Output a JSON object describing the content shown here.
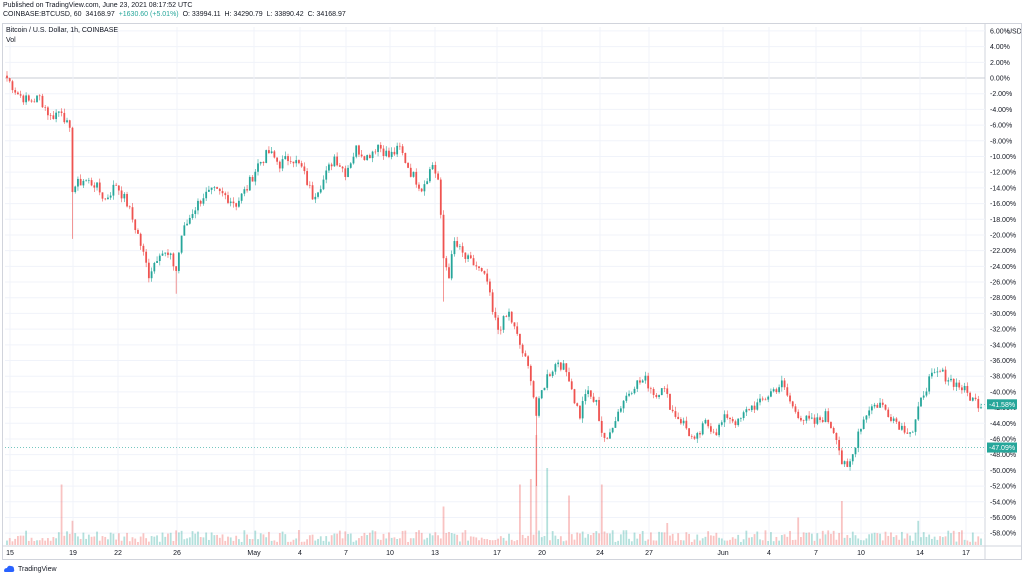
{
  "header": {
    "published": "Published on TradingView.com, June 23, 2021 08:17:52 UTC",
    "symbol": "COINBASE:BTCUSD, 60",
    "last": "34168.97",
    "change": "+1630.60 (+5.01%)",
    "open": "O: 33994.11",
    "high": "H: 34290.79",
    "low": "L: 33890.42",
    "close": "C: 34168.97"
  },
  "legend": {
    "title": "Bitcoin / U.S. Dollar, 1h, COINBASE",
    "vol_label": "Vol"
  },
  "footer": {
    "brand": "TradingView"
  },
  "colors": {
    "up": "#26a69a",
    "down": "#ef5350",
    "grid": "#f0f3fa",
    "axis": "#131722"
  },
  "chart_data": {
    "type": "candlestick",
    "yunit": "USD",
    "y_scale": "percent",
    "ylim": [
      -59,
      6.5
    ],
    "y_ticks": [
      "6.00%",
      "4.00%",
      "2.00%",
      "0.00%",
      "-2.00%",
      "-4.00%",
      "-6.00%",
      "-8.00%",
      "-10.00%",
      "-12.00%",
      "-14.00%",
      "-16.00%",
      "-18.00%",
      "-20.00%",
      "-22.00%",
      "-24.00%",
      "-26.00%",
      "-28.00%",
      "-30.00%",
      "-32.00%",
      "-34.00%",
      "-36.00%",
      "-38.00%",
      "-40.00%",
      "-42.00%",
      "-44.00%",
      "-46.00%",
      "-48.00%",
      "-50.00%",
      "-52.00%",
      "-54.00%",
      "-56.00%",
      "-58.00%"
    ],
    "x_ticks": [
      "15",
      "19",
      "22",
      "26",
      "May",
      "4",
      "7",
      "10",
      "13",
      "17",
      "20",
      "24",
      "27",
      "Jun",
      "4",
      "7",
      "10",
      "14",
      "17"
    ],
    "current_tag": "-41.58%",
    "reference_tag": "-47.09%",
    "reference_value": -47.09,
    "grid": true,
    "path_keypoints": [
      {
        "x": 0,
        "y": 0
      },
      {
        "x": 4,
        "y": -2
      },
      {
        "x": 8,
        "y": -3
      },
      {
        "x": 12,
        "y": -2.5
      },
      {
        "x": 16,
        "y": -5
      },
      {
        "x": 20,
        "y": -4
      },
      {
        "x": 23,
        "y": -7
      },
      {
        "x": 24,
        "y": -14
      },
      {
        "x": 28,
        "y": -13
      },
      {
        "x": 32,
        "y": -13.5
      },
      {
        "x": 36,
        "y": -15.5
      },
      {
        "x": 40,
        "y": -13.5
      },
      {
        "x": 44,
        "y": -16
      },
      {
        "x": 48,
        "y": -20
      },
      {
        "x": 52,
        "y": -25
      },
      {
        "x": 56,
        "y": -22
      },
      {
        "x": 60,
        "y": -23
      },
      {
        "x": 62,
        "y": -24.5
      },
      {
        "x": 64,
        "y": -20
      },
      {
        "x": 68,
        "y": -17
      },
      {
        "x": 72,
        "y": -15
      },
      {
        "x": 76,
        "y": -14.5
      },
      {
        "x": 80,
        "y": -15
      },
      {
        "x": 84,
        "y": -16
      },
      {
        "x": 88,
        "y": -14
      },
      {
        "x": 92,
        "y": -11
      },
      {
        "x": 96,
        "y": -9.5
      },
      {
        "x": 100,
        "y": -11
      },
      {
        "x": 104,
        "y": -10
      },
      {
        "x": 108,
        "y": -11.5
      },
      {
        "x": 112,
        "y": -15
      },
      {
        "x": 116,
        "y": -13
      },
      {
        "x": 120,
        "y": -10
      },
      {
        "x": 124,
        "y": -12
      },
      {
        "x": 128,
        "y": -9
      },
      {
        "x": 132,
        "y": -10
      },
      {
        "x": 136,
        "y": -8.5
      },
      {
        "x": 140,
        "y": -10
      },
      {
        "x": 144,
        "y": -9
      },
      {
        "x": 148,
        "y": -12
      },
      {
        "x": 152,
        "y": -14
      },
      {
        "x": 156,
        "y": -11
      },
      {
        "x": 158,
        "y": -13
      },
      {
        "x": 160,
        "y": -23
      },
      {
        "x": 162,
        "y": -25
      },
      {
        "x": 164,
        "y": -21
      },
      {
        "x": 168,
        "y": -23
      },
      {
        "x": 172,
        "y": -24
      },
      {
        "x": 176,
        "y": -26
      },
      {
        "x": 178,
        "y": -30
      },
      {
        "x": 180,
        "y": -32
      },
      {
        "x": 184,
        "y": -30
      },
      {
        "x": 188,
        "y": -34
      },
      {
        "x": 192,
        "y": -38
      },
      {
        "x": 194,
        "y": -43
      },
      {
        "x": 196,
        "y": -40
      },
      {
        "x": 198,
        "y": -38
      },
      {
        "x": 202,
        "y": -36
      },
      {
        "x": 206,
        "y": -38
      },
      {
        "x": 208,
        "y": -41
      },
      {
        "x": 210,
        "y": -43
      },
      {
        "x": 212,
        "y": -40
      },
      {
        "x": 216,
        "y": -41.5
      },
      {
        "x": 218,
        "y": -45
      },
      {
        "x": 220,
        "y": -46.5
      },
      {
        "x": 222,
        "y": -44
      },
      {
        "x": 226,
        "y": -41
      },
      {
        "x": 230,
        "y": -39
      },
      {
        "x": 234,
        "y": -38.5
      },
      {
        "x": 238,
        "y": -40.5
      },
      {
        "x": 240,
        "y": -39
      },
      {
        "x": 244,
        "y": -42.5
      },
      {
        "x": 248,
        "y": -44
      },
      {
        "x": 252,
        "y": -46.5
      },
      {
        "x": 256,
        "y": -44
      },
      {
        "x": 260,
        "y": -45
      },
      {
        "x": 264,
        "y": -43
      },
      {
        "x": 268,
        "y": -44
      },
      {
        "x": 272,
        "y": -42
      },
      {
        "x": 276,
        "y": -41.5
      },
      {
        "x": 280,
        "y": -40
      },
      {
        "x": 284,
        "y": -39
      },
      {
        "x": 288,
        "y": -42
      },
      {
        "x": 292,
        "y": -43.5
      },
      {
        "x": 296,
        "y": -44
      },
      {
        "x": 300,
        "y": -43
      },
      {
        "x": 304,
        "y": -45.5
      },
      {
        "x": 306,
        "y": -49
      },
      {
        "x": 308,
        "y": -50
      },
      {
        "x": 310,
        "y": -48
      },
      {
        "x": 312,
        "y": -45
      },
      {
        "x": 316,
        "y": -42
      },
      {
        "x": 320,
        "y": -41.5
      },
      {
        "x": 324,
        "y": -43
      },
      {
        "x": 328,
        "y": -44.5
      },
      {
        "x": 332,
        "y": -45
      },
      {
        "x": 336,
        "y": -40
      },
      {
        "x": 338,
        "y": -38.5
      },
      {
        "x": 342,
        "y": -37.5
      },
      {
        "x": 346,
        "y": -38.5
      },
      {
        "x": 350,
        "y": -39.5
      },
      {
        "x": 354,
        "y": -41
      },
      {
        "x": 357,
        "y": -41.6
      }
    ],
    "volume_spikes": [
      [
        20,
        0.55
      ],
      [
        24,
        0.22
      ],
      [
        160,
        0.35
      ],
      [
        188,
        0.55
      ],
      [
        192,
        0.6
      ],
      [
        194,
        1.0
      ],
      [
        198,
        0.7
      ],
      [
        206,
        0.45
      ],
      [
        218,
        0.55
      ],
      [
        242,
        0.2
      ],
      [
        290,
        0.25
      ],
      [
        306,
        0.4
      ],
      [
        334,
        0.22
      ]
    ]
  }
}
